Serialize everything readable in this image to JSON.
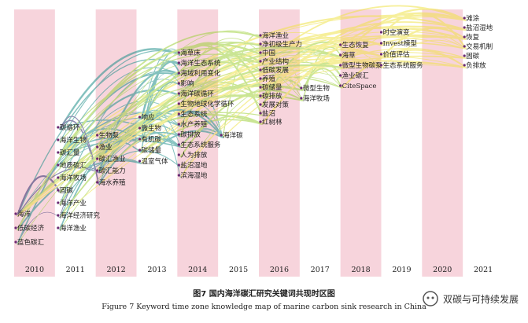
{
  "figure": {
    "caption_cn": "图7  国内海洋碳汇研究关键词共现时区图",
    "caption_en": "Figure 7   Keyword time zone knowledge map of marine carbon sink research in China",
    "watermark_text": "双碳与可持续发展",
    "watermark_icon": "wechat-icon"
  },
  "colors": {
    "stripe": "#f7d4dc",
    "early": "#2d2a6e",
    "mid": "#1f8f8a",
    "late": "#9fd13e",
    "latest": "#f0e24a"
  },
  "years": [
    "2010",
    "2011",
    "2012",
    "2013",
    "2014",
    "2015",
    "2016",
    "2017",
    "2018",
    "2019",
    "2020",
    "2021"
  ],
  "keyword_groups": [
    {
      "year": "2010",
      "words": [
        "海洋",
        "低碳经济",
        "蓝色碳汇"
      ]
    },
    {
      "year": "2011",
      "words": [
        "碳循环",
        "海洋生物",
        "碳汇量",
        "地质碳汇",
        "海洋牧场",
        "固碳",
        "海洋产业",
        "海洋经济研究",
        "海洋渔业"
      ]
    },
    {
      "year": "2012",
      "words": [
        "生物泵",
        "渔业",
        "碳汇渔业",
        "碳汇能力",
        "海水养殖"
      ]
    },
    {
      "year": "2013",
      "words": [
        "响应",
        "微生物",
        "有机碳",
        "碳储量",
        "温室气体"
      ]
    },
    {
      "year": "2014",
      "words": [
        "海草床",
        "海洋生态系统",
        "海域利用变化",
        "影响",
        "海洋碳循环",
        "生物地球化学循环",
        "生态系统",
        "水产养殖",
        "碳排放",
        "生态系统服务",
        "人为排放",
        "盐沼湿地",
        "滨海湿地"
      ]
    },
    {
      "year": "2015",
      "words": [
        "海洋碳"
      ]
    },
    {
      "year": "2016",
      "words": [
        "海洋渔业",
        "净初级生产力",
        "中国",
        "产业结构",
        "低碳发展",
        "养殖",
        "碳储量",
        "碳排放",
        "发展对策",
        "盐沼",
        "红树林"
      ]
    },
    {
      "year": "2017",
      "words": [
        "微型生物",
        "海洋牧场"
      ]
    },
    {
      "year": "2018",
      "words": [
        "生态恢复",
        "海草",
        "微型生物碳泵",
        "渔业碳汇",
        "CiteSpace"
      ]
    },
    {
      "year": "2019",
      "words": [
        "时空演变",
        "Invest模型",
        "价值评估",
        "生态系统服务"
      ]
    },
    {
      "year": "2021",
      "words": [
        "滩涂",
        "盐沼湿地",
        "恢复",
        "交易机制",
        "固碳",
        "负排放"
      ]
    }
  ]
}
